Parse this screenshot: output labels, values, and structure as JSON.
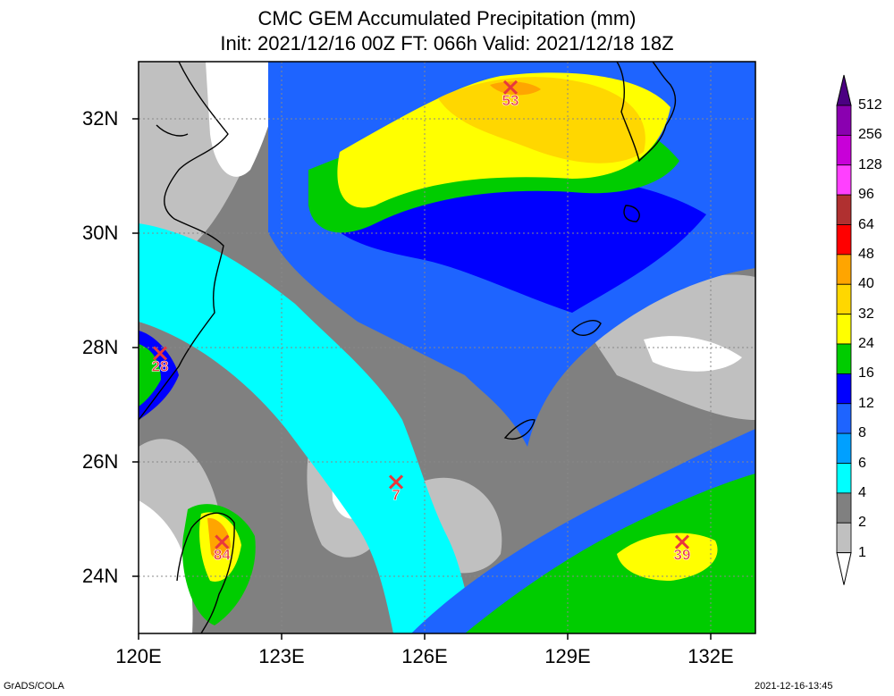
{
  "title": {
    "line1": "CMC GEM Accumulated Precipitation (mm)",
    "line2": "Init: 2021/12/16 00Z  FT: 066h  Valid: 2021/12/18 18Z"
  },
  "axes": {
    "lat_labels": [
      "32N",
      "30N",
      "28N",
      "26N",
      "24N"
    ],
    "lon_labels": [
      "120E",
      "123E",
      "126E",
      "129E",
      "132E"
    ]
  },
  "colorbar": {
    "levels": [
      "512",
      "256",
      "128",
      "96",
      "64",
      "48",
      "40",
      "32",
      "24",
      "16",
      "12",
      "8",
      "6",
      "4",
      "2",
      "1"
    ],
    "colors": [
      "#4b0082",
      "#8a00b0",
      "#c800d8",
      "#ff40ff",
      "#b03030",
      "#ff0000",
      "#ffa500",
      "#ffd700",
      "#ffff00",
      "#00cc00",
      "#0000ff",
      "#1e64ff",
      "#00a0ff",
      "#00ffff",
      "#808080",
      "#c0c0c0",
      "#ffffff"
    ]
  },
  "markers": [
    {
      "label": "53",
      "lon": 127.8,
      "lat": 32.55
    },
    {
      "label": "28",
      "lon": 120.45,
      "lat": 27.9
    },
    {
      "label": "7",
      "lon": 125.4,
      "lat": 25.65
    },
    {
      "label": "84",
      "lon": 121.75,
      "lat": 24.6
    },
    {
      "label": "39",
      "lon": 131.4,
      "lat": 24.6
    }
  ],
  "footer": {
    "left": "GrADS/COLA",
    "right": "2021-12-16-13:45"
  }
}
